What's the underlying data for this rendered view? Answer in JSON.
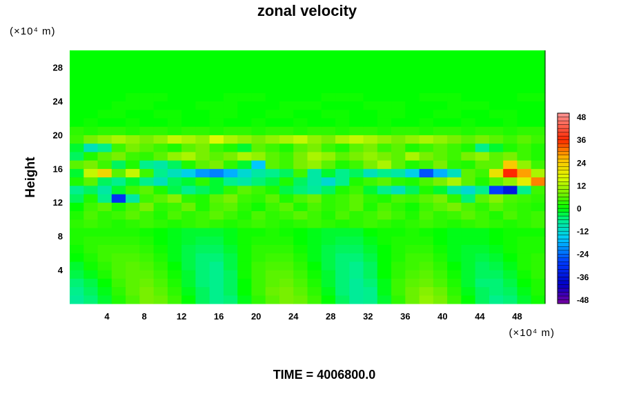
{
  "chart_data": {
    "type": "heatmap",
    "title": "zonal velocity",
    "ylabel": "Height",
    "x_unit": "(×10⁴ m)",
    "y_unit": "(×10⁴ m)",
    "x_ticks": [
      4,
      8,
      12,
      16,
      20,
      24,
      28,
      32,
      36,
      40,
      44,
      48
    ],
    "y_ticks": [
      4,
      8,
      12,
      16,
      20,
      24,
      28
    ],
    "xlim": [
      0,
      51
    ],
    "ylim": [
      0,
      30
    ],
    "colorbar": {
      "range": [
        -50,
        50
      ],
      "ticks": [
        48,
        36,
        24,
        12,
        0,
        -12,
        -24,
        -36,
        -48
      ]
    },
    "rows_y": [
      0.5,
      1.5,
      2.5,
      3.5,
      4.5,
      5.5,
      6.5,
      7.5,
      8.5,
      9.5,
      10.5,
      11.5,
      12.5,
      13.5,
      14.5,
      15.5,
      16.5,
      17.5,
      18.5,
      19.5,
      20.5,
      21.5,
      22.5,
      23.5,
      24.5,
      25.5,
      26.5,
      27.5,
      28.5,
      29.5
    ],
    "cols_x": [
      0.75,
      2.25,
      3.75,
      5.25,
      6.75,
      8.25,
      9.75,
      11.25,
      12.75,
      14.25,
      15.75,
      17.25,
      18.75,
      20.25,
      21.75,
      23.25,
      24.75,
      26.25,
      27.75,
      29.25,
      30.75,
      32.25,
      33.75,
      35.25,
      36.75,
      38.25,
      39.75,
      41.25,
      42.75,
      44.25,
      45.75,
      47.25,
      48.75,
      50.25
    ],
    "z": [
      [
        -7,
        -5,
        -2,
        2,
        5,
        8,
        7,
        4,
        0,
        -4,
        -6,
        -5,
        -1,
        3,
        6,
        8,
        7,
        4,
        0,
        -4,
        -7,
        -6,
        -2,
        3,
        7,
        10,
        8,
        4,
        0,
        -4,
        -6,
        -5,
        -2,
        1
      ],
      [
        -6,
        -4,
        -1,
        3,
        6,
        8,
        6,
        3,
        -1,
        -4,
        -6,
        -4,
        0,
        4,
        7,
        8,
        6,
        3,
        -1,
        -5,
        -7,
        -6,
        -1,
        4,
        7,
        9,
        7,
        3,
        -1,
        -4,
        -5,
        -4,
        -1,
        2
      ],
      [
        -5,
        -3,
        0,
        4,
        6,
        7,
        5,
        2,
        -2,
        -5,
        -6,
        -4,
        0,
        4,
        6,
        7,
        5,
        2,
        -2,
        -5,
        -7,
        -5,
        -1,
        4,
        6,
        7,
        5,
        2,
        -2,
        -5,
        -5,
        -3,
        0,
        2
      ],
      [
        -3,
        -1,
        2,
        5,
        6,
        6,
        4,
        1,
        -2,
        -5,
        -6,
        -4,
        1,
        4,
        6,
        6,
        4,
        1,
        -2,
        -5,
        -6,
        -4,
        0,
        3,
        5,
        6,
        4,
        1,
        -2,
        -4,
        -4,
        -2,
        1,
        3
      ],
      [
        -2,
        1,
        3,
        5,
        6,
        5,
        3,
        0,
        -3,
        -5,
        -6,
        -3,
        1,
        4,
        5,
        5,
        3,
        0,
        -3,
        -5,
        -6,
        -4,
        0,
        3,
        4,
        5,
        3,
        0,
        -2,
        -4,
        -3,
        -1,
        2,
        3
      ],
      [
        0,
        2,
        4,
        5,
        5,
        4,
        2,
        -1,
        -3,
        -5,
        -5,
        -3,
        1,
        3,
        4,
        4,
        2,
        -1,
        -3,
        -5,
        -5,
        -3,
        0,
        2,
        4,
        4,
        2,
        -1,
        -2,
        -3,
        -2,
        0,
        2,
        3
      ],
      [
        1,
        3,
        4,
        4,
        4,
        3,
        1,
        -1,
        -3,
        -4,
        -4,
        -2,
        1,
        3,
        3,
        3,
        1,
        -1,
        -3,
        -4,
        -4,
        -2,
        0,
        2,
        3,
        3,
        1,
        -1,
        -2,
        -2,
        -1,
        1,
        2,
        2
      ],
      [
        2,
        3,
        3,
        3,
        3,
        2,
        0,
        -1,
        -2,
        -3,
        -3,
        -1,
        1,
        2,
        2,
        2,
        0,
        -1,
        -2,
        -3,
        -3,
        -1,
        1,
        2,
        2,
        2,
        0,
        -1,
        -1,
        -1,
        0,
        1,
        2,
        2
      ],
      [
        2,
        2,
        2,
        2,
        2,
        1,
        0,
        -1,
        -2,
        -2,
        -2,
        -1,
        1,
        1,
        2,
        1,
        0,
        -1,
        -2,
        -2,
        -2,
        0,
        1,
        1,
        2,
        1,
        0,
        -1,
        -1,
        -1,
        0,
        1,
        1,
        1
      ],
      [
        3,
        4,
        3,
        2,
        3,
        4,
        3,
        2,
        3,
        4,
        3,
        2,
        3,
        4,
        3,
        2,
        3,
        4,
        3,
        2,
        3,
        4,
        3,
        2,
        3,
        4,
        3,
        2,
        3,
        4,
        3,
        2,
        3,
        4
      ],
      [
        2,
        5,
        3,
        4,
        6,
        4,
        2,
        5,
        3,
        4,
        6,
        4,
        2,
        5,
        3,
        4,
        6,
        4,
        2,
        5,
        3,
        4,
        6,
        4,
        2,
        5,
        3,
        4,
        6,
        4,
        2,
        5,
        3,
        4
      ],
      [
        0,
        4,
        6,
        2,
        5,
        8,
        3,
        4,
        7,
        2,
        5,
        6,
        3,
        1,
        4,
        6,
        2,
        5,
        3,
        4,
        6,
        2,
        5,
        3,
        1,
        4,
        6,
        8,
        5,
        3,
        6,
        4,
        3,
        2
      ],
      [
        -4,
        2,
        -6,
        -30,
        -8,
        4,
        6,
        9,
        3,
        2,
        6,
        8,
        4,
        3,
        6,
        2,
        5,
        7,
        3,
        4,
        6,
        3,
        2,
        5,
        4,
        6,
        8,
        3,
        -5,
        6,
        9,
        5,
        4,
        3
      ],
      [
        -6,
        -4,
        -8,
        -2,
        4,
        6,
        2,
        -3,
        -6,
        -4,
        -2,
        3,
        6,
        4,
        2,
        -3,
        -5,
        -7,
        -4,
        2,
        4,
        -2,
        -6,
        -10,
        -4,
        2,
        -2,
        -8,
        -12,
        -6,
        -28,
        -35,
        -6,
        4
      ],
      [
        2,
        6,
        -4,
        -6,
        -2,
        -6,
        -10,
        -4,
        -2,
        3,
        -2,
        -6,
        -8,
        -5,
        -3,
        2,
        -4,
        -8,
        -12,
        -6,
        2,
        4,
        6,
        3,
        2,
        5,
        8,
        12,
        6,
        2,
        6,
        10,
        18,
        30
      ],
      [
        -2,
        14,
        22,
        6,
        14,
        4,
        -6,
        -10,
        -14,
        -20,
        -22,
        -18,
        -12,
        -8,
        -6,
        -4,
        4,
        -8,
        -2,
        -6,
        -4,
        -10,
        -6,
        -8,
        -14,
        -26,
        -18,
        -10,
        6,
        4,
        20,
        36,
        28,
        12
      ],
      [
        6,
        8,
        4,
        -4,
        2,
        -6,
        -8,
        -4,
        2,
        6,
        8,
        3,
        -2,
        -16,
        6,
        4,
        8,
        10,
        6,
        2,
        4,
        8,
        12,
        6,
        2,
        4,
        8,
        3,
        2,
        6,
        6,
        24,
        10,
        4
      ],
      [
        -4,
        2,
        6,
        8,
        4,
        3,
        6,
        10,
        12,
        8,
        6,
        8,
        12,
        10,
        6,
        4,
        8,
        12,
        10,
        6,
        8,
        10,
        8,
        6,
        12,
        8,
        6,
        4,
        8,
        10,
        6,
        8,
        4,
        2
      ],
      [
        -2,
        -10,
        -6,
        4,
        8,
        6,
        4,
        2,
        6,
        8,
        4,
        2,
        -2,
        6,
        4,
        2,
        6,
        8,
        4,
        2,
        6,
        8,
        4,
        6,
        2,
        4,
        6,
        4,
        2,
        -6,
        -2,
        2,
        4,
        2
      ],
      [
        4,
        8,
        10,
        12,
        10,
        8,
        10,
        14,
        12,
        10,
        16,
        12,
        10,
        8,
        10,
        12,
        14,
        10,
        8,
        12,
        14,
        12,
        10,
        8,
        10,
        12,
        10,
        8,
        6,
        8,
        6,
        4,
        6,
        4
      ],
      [
        3,
        2,
        3,
        3,
        2,
        3,
        3,
        2,
        3,
        3,
        2,
        3,
        3,
        2,
        3,
        3,
        2,
        3,
        3,
        2,
        3,
        3,
        2,
        3,
        3,
        2,
        3,
        3,
        2,
        3,
        3,
        2,
        3,
        3
      ],
      [
        0,
        1,
        0,
        0,
        1,
        0,
        0,
        1,
        0,
        0,
        1,
        0,
        0,
        1,
        0,
        0,
        1,
        0,
        0,
        1,
        0,
        0,
        1,
        0,
        0,
        1,
        0,
        0,
        1,
        0,
        0,
        1,
        0,
        0
      ],
      [
        0,
        0,
        1,
        1,
        0,
        0,
        1,
        1,
        0,
        0,
        1,
        1,
        0,
        0,
        1,
        1,
        0,
        0,
        1,
        1,
        0,
        0,
        1,
        1,
        0,
        0,
        1,
        1,
        0,
        0,
        1,
        1,
        0,
        0
      ],
      [
        0,
        0,
        0,
        1,
        1,
        1,
        0,
        0,
        0,
        1,
        1,
        1,
        0,
        0,
        0,
        1,
        1,
        1,
        0,
        0,
        0,
        1,
        1,
        1,
        0,
        0,
        0,
        1,
        1,
        1,
        0,
        0,
        0,
        0
      ],
      [
        0,
        0,
        0,
        0,
        1,
        1,
        1,
        0,
        0,
        0,
        0,
        1,
        1,
        1,
        0,
        0,
        0,
        0,
        1,
        1,
        1,
        0,
        0,
        0,
        0,
        1,
        1,
        1,
        0,
        0,
        0,
        0,
        1,
        1
      ],
      [
        0,
        0,
        0,
        0,
        0,
        0,
        0,
        0,
        0,
        0,
        0,
        0,
        0,
        0,
        0,
        0,
        0,
        0,
        0,
        0,
        0,
        0,
        0,
        0,
        0,
        0,
        0,
        0,
        0,
        0,
        0,
        0,
        0,
        0
      ],
      [
        0,
        0,
        0,
        0,
        0,
        0,
        0,
        0,
        0,
        0,
        0,
        0,
        0,
        0,
        0,
        0,
        0,
        0,
        0,
        0,
        0,
        0,
        0,
        0,
        0,
        0,
        0,
        0,
        0,
        0,
        0,
        0,
        0,
        0
      ],
      [
        0,
        0,
        0,
        0,
        0,
        0,
        0,
        0,
        0,
        0,
        0,
        0,
        0,
        0,
        0,
        0,
        0,
        0,
        0,
        0,
        0,
        0,
        0,
        0,
        0,
        0,
        0,
        0,
        0,
        0,
        0,
        0,
        0,
        0
      ],
      [
        0,
        0,
        0,
        0,
        0,
        0,
        0,
        0,
        0,
        0,
        0,
        0,
        0,
        0,
        0,
        0,
        0,
        0,
        0,
        0,
        0,
        0,
        0,
        0,
        0,
        0,
        0,
        0,
        0,
        0,
        0,
        0,
        0,
        0
      ],
      [
        0,
        0,
        0,
        0,
        0,
        0,
        0,
        0,
        0,
        0,
        0,
        0,
        0,
        0,
        0,
        0,
        0,
        0,
        0,
        0,
        0,
        0,
        0,
        0,
        0,
        0,
        0,
        0,
        0,
        0,
        0,
        0,
        0,
        0
      ]
    ]
  },
  "footer": {
    "time_label": "TIME = 4006800.0"
  }
}
